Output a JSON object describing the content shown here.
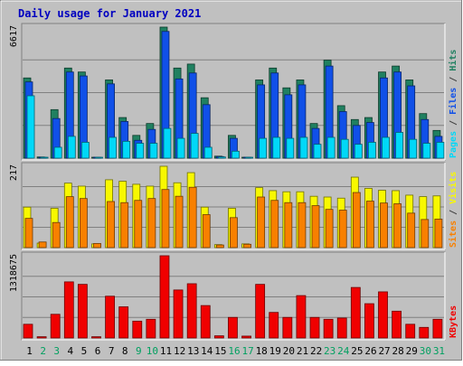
{
  "chart_data": {
    "type": "bar",
    "title": "Daily usage for January 2021",
    "categories": [
      "1",
      "2",
      "3",
      "4",
      "5",
      "6",
      "7",
      "8",
      "9",
      "10",
      "11",
      "12",
      "13",
      "14",
      "15",
      "16",
      "17",
      "18",
      "19",
      "20",
      "21",
      "22",
      "23",
      "24",
      "25",
      "26",
      "27",
      "28",
      "29",
      "30",
      "31"
    ],
    "weekend_days": [
      "2",
      "3",
      "9",
      "10",
      "16",
      "17",
      "23",
      "24",
      "30",
      "31"
    ],
    "panels": [
      {
        "name": "hits-files-pages",
        "scale_label": "6617",
        "ylim": [
          0,
          6617
        ],
        "right_label_parts": [
          {
            "text": "Pages",
            "color": "#00d8f8"
          },
          {
            "text": " / ",
            "color": "#404040"
          },
          {
            "text": "Files",
            "color": "#1050e8"
          },
          {
            "text": " / ",
            "color": "#404040"
          },
          {
            "text": "Hits",
            "color": "#208060"
          }
        ],
        "series": [
          {
            "name": "Hits",
            "color": "#208060",
            "values": [
              4050,
              60,
              2450,
              4550,
              4350,
              40,
              3950,
              2050,
              1150,
              1750,
              6617,
              4550,
              4750,
              3050,
              100,
              1150,
              40,
              3950,
              4550,
              3550,
              3950,
              1750,
              4950,
              2650,
              1950,
              2050,
              4350,
              4650,
              3950,
              2250,
              1400
            ]
          },
          {
            "name": "Files",
            "color": "#1050e8",
            "values": [
              3850,
              40,
              2000,
              4350,
              4150,
              30,
              3750,
              1850,
              900,
              1450,
              6400,
              4000,
              4300,
              2700,
              80,
              1000,
              30,
              3700,
              4300,
              3200,
              3700,
              1500,
              4650,
              2350,
              1650,
              1800,
              4050,
              4350,
              3650,
              1950,
              1100
            ]
          },
          {
            "name": "Pages",
            "color": "#00d8f8",
            "values": [
              3150,
              25,
              550,
              1100,
              800,
              20,
              1050,
              850,
              750,
              750,
              1500,
              1000,
              1250,
              550,
              60,
              350,
              20,
              1000,
              1050,
              1000,
              1050,
              700,
              1050,
              950,
              700,
              800,
              1050,
              1300,
              950,
              750,
              800
            ]
          }
        ]
      },
      {
        "name": "visits-sites",
        "scale_label": "217",
        "ylim": [
          0,
          217
        ],
        "right_label_parts": [
          {
            "text": "Sites",
            "color": "#f88000"
          },
          {
            "text": " / ",
            "color": "#404040"
          },
          {
            "text": "Visits",
            "color": "#f8f800"
          }
        ],
        "series": [
          {
            "name": "Visits",
            "color": "#f8f800",
            "values": [
              108,
              12,
              105,
              172,
              164,
              10,
              181,
              177,
              169,
              164,
              217,
              173,
              200,
              108,
              8,
              105,
              10,
              160,
              152,
              149,
              149,
              137,
              135,
              132,
              188,
              158,
              153,
              152,
              140,
              136,
              138
            ]
          },
          {
            "name": "Sites",
            "color": "#f88000",
            "values": [
              78,
              15,
              67,
              136,
              131,
              11,
              123,
              120,
              126,
              131,
              155,
              137,
              161,
              88,
              7,
              80,
              9,
              135,
              126,
              120,
              120,
              112,
              102,
              100,
              147,
              124,
              119,
              117,
              92,
              75,
              76
            ]
          }
        ]
      },
      {
        "name": "kbytes",
        "scale_label": "1318675",
        "ylim": [
          0,
          1318675
        ],
        "right_label_parts": [
          {
            "text": "KBytes",
            "color": "#f00000"
          }
        ],
        "series": [
          {
            "name": "KBytes",
            "color": "#f00000",
            "values": [
              220000,
              20000,
              380000,
              900000,
              860000,
              20000,
              670000,
              500000,
              270000,
              300000,
              1318675,
              770000,
              870000,
              520000,
              35000,
              330000,
              30000,
              860000,
              410000,
              330000,
              680000,
              330000,
              300000,
              320000,
              810000,
              550000,
              740000,
              430000,
              220000,
              170000,
              300000
            ]
          }
        ]
      }
    ]
  }
}
